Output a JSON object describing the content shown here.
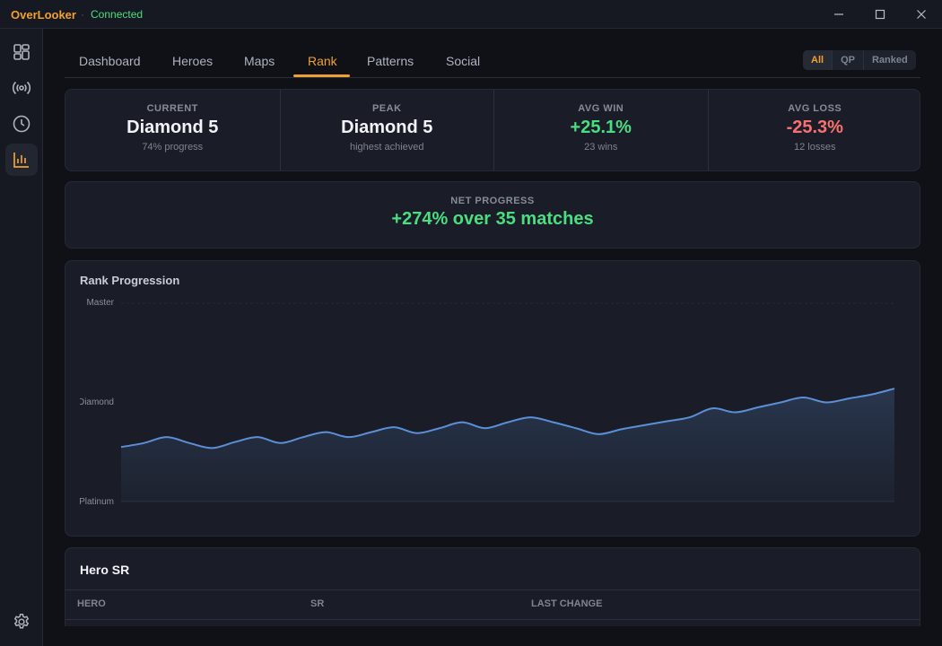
{
  "app": {
    "name": "OverLooker",
    "separator": "·",
    "status": "Connected"
  },
  "window_controls": {
    "minimize": "—",
    "maximize": "☐",
    "close": "✕"
  },
  "sidebar": {
    "items": [
      {
        "icon": "dashboard-icon"
      },
      {
        "icon": "broadcast-icon"
      },
      {
        "icon": "clock-icon"
      },
      {
        "icon": "bar-chart-icon",
        "active": true
      }
    ],
    "settings_icon": "gear-icon"
  },
  "tabs": [
    {
      "label": "Dashboard"
    },
    {
      "label": "Heroes"
    },
    {
      "label": "Maps"
    },
    {
      "label": "Rank",
      "active": true
    },
    {
      "label": "Patterns"
    },
    {
      "label": "Social"
    }
  ],
  "filter": {
    "options": [
      "All",
      "QP",
      "Ranked"
    ],
    "selected": "All"
  },
  "stats": [
    {
      "label": "CURRENT",
      "value": "Diamond 5",
      "sub": "74% progress"
    },
    {
      "label": "PEAK",
      "value": "Diamond 5",
      "sub": "highest achieved"
    },
    {
      "label": "AVG WIN",
      "value": "+25.1%",
      "sub": "23 wins"
    },
    {
      "label": "AVG LOSS",
      "value": "-25.3%",
      "sub": "12 losses"
    }
  ],
  "net": {
    "label": "NET PROGRESS",
    "value": "+274% over 35 matches"
  },
  "colors": {
    "accent": "#f0a030",
    "positive": "#4ade80",
    "negative": "#f87171",
    "line": "#5b8fd6"
  },
  "chart_data": {
    "type": "area",
    "title": "Rank Progression",
    "y_ticks": [
      "Platinum",
      "Diamond",
      "Master"
    ],
    "ylim": [
      0,
      2
    ],
    "x": [
      1,
      2,
      3,
      4,
      5,
      6,
      7,
      8,
      9,
      10,
      11,
      12,
      13,
      14,
      15,
      16,
      17,
      18,
      19,
      20,
      21,
      22,
      23,
      24,
      25,
      26,
      27,
      28,
      29,
      30,
      31,
      32,
      33,
      34,
      35
    ],
    "values": [
      0.55,
      0.59,
      0.65,
      0.59,
      0.54,
      0.6,
      0.65,
      0.59,
      0.65,
      0.7,
      0.65,
      0.7,
      0.75,
      0.69,
      0.74,
      0.8,
      0.74,
      0.8,
      0.85,
      0.8,
      0.74,
      0.68,
      0.73,
      0.77,
      0.81,
      0.85,
      0.94,
      0.9,
      0.95,
      1.0,
      1.05,
      1.0,
      1.04,
      1.08,
      1.14
    ]
  },
  "hero_sr": {
    "title": "Hero SR",
    "columns": [
      "HERO",
      "SR",
      "LAST CHANGE"
    ]
  }
}
